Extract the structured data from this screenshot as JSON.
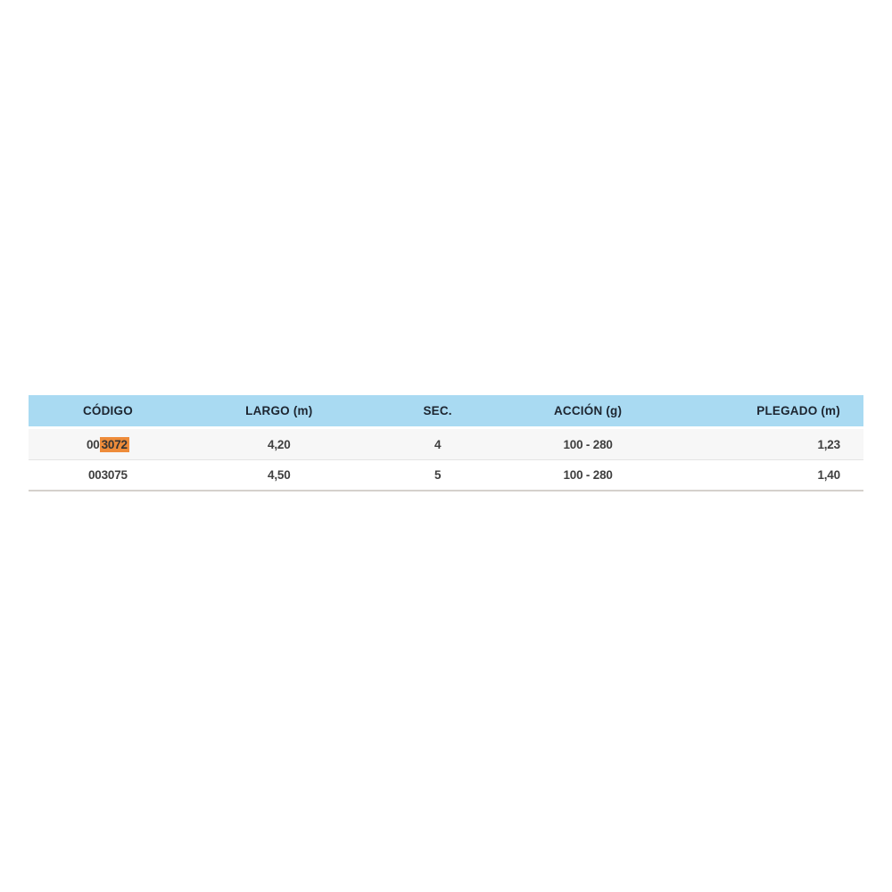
{
  "table": {
    "columns": {
      "codigo": "CÓDIGO",
      "largo": "LARGO (m)",
      "sec": "SEC.",
      "accion": "ACCIÓN (g)",
      "plegado": "PLEGADO (m)"
    },
    "rows": [
      {
        "codigo_prefix": "00",
        "codigo_highlight": "3072",
        "largo": "4,20",
        "sec": "4",
        "accion": "100 - 280",
        "plegado": "1,23"
      },
      {
        "codigo_prefix": "003075",
        "codigo_highlight": "",
        "largo": "4,50",
        "sec": "5",
        "accion": "100 - 280",
        "plegado": "1,40"
      }
    ],
    "colors": {
      "header_bg": "#a9daf2",
      "header_text": "#1d2530",
      "row_alt_bg": "#f7f7f7",
      "cell_text": "#3f3f3f",
      "highlight_bg": "#ee8c3a"
    }
  }
}
